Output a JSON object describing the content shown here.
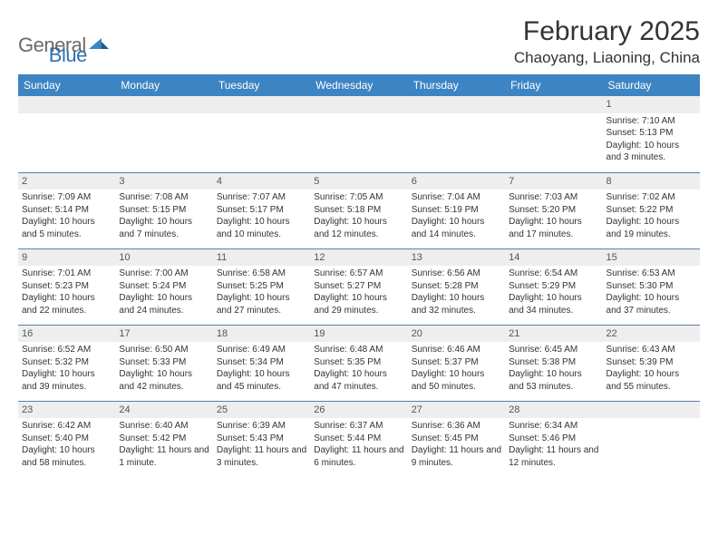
{
  "logo": {
    "text1": "General",
    "text2": "Blue"
  },
  "title": "February 2025",
  "location": "Chaoyang, Liaoning, China",
  "colors": {
    "header_bg": "#3d84c3",
    "header_text": "#ffffff",
    "row_border": "#5a7fa3",
    "daynum_bg": "#eeeeee",
    "logo_gray": "#6a6a6a",
    "logo_blue": "#2f6fb0",
    "text": "#333333"
  },
  "weekdays": [
    "Sunday",
    "Monday",
    "Tuesday",
    "Wednesday",
    "Thursday",
    "Friday",
    "Saturday"
  ],
  "weeks": [
    [
      {
        "num": "",
        "sunrise": "",
        "sunset": "",
        "daylight": ""
      },
      {
        "num": "",
        "sunrise": "",
        "sunset": "",
        "daylight": ""
      },
      {
        "num": "",
        "sunrise": "",
        "sunset": "",
        "daylight": ""
      },
      {
        "num": "",
        "sunrise": "",
        "sunset": "",
        "daylight": ""
      },
      {
        "num": "",
        "sunrise": "",
        "sunset": "",
        "daylight": ""
      },
      {
        "num": "",
        "sunrise": "",
        "sunset": "",
        "daylight": ""
      },
      {
        "num": "1",
        "sunrise": "Sunrise: 7:10 AM",
        "sunset": "Sunset: 5:13 PM",
        "daylight": "Daylight: 10 hours and 3 minutes."
      }
    ],
    [
      {
        "num": "2",
        "sunrise": "Sunrise: 7:09 AM",
        "sunset": "Sunset: 5:14 PM",
        "daylight": "Daylight: 10 hours and 5 minutes."
      },
      {
        "num": "3",
        "sunrise": "Sunrise: 7:08 AM",
        "sunset": "Sunset: 5:15 PM",
        "daylight": "Daylight: 10 hours and 7 minutes."
      },
      {
        "num": "4",
        "sunrise": "Sunrise: 7:07 AM",
        "sunset": "Sunset: 5:17 PM",
        "daylight": "Daylight: 10 hours and 10 minutes."
      },
      {
        "num": "5",
        "sunrise": "Sunrise: 7:05 AM",
        "sunset": "Sunset: 5:18 PM",
        "daylight": "Daylight: 10 hours and 12 minutes."
      },
      {
        "num": "6",
        "sunrise": "Sunrise: 7:04 AM",
        "sunset": "Sunset: 5:19 PM",
        "daylight": "Daylight: 10 hours and 14 minutes."
      },
      {
        "num": "7",
        "sunrise": "Sunrise: 7:03 AM",
        "sunset": "Sunset: 5:20 PM",
        "daylight": "Daylight: 10 hours and 17 minutes."
      },
      {
        "num": "8",
        "sunrise": "Sunrise: 7:02 AM",
        "sunset": "Sunset: 5:22 PM",
        "daylight": "Daylight: 10 hours and 19 minutes."
      }
    ],
    [
      {
        "num": "9",
        "sunrise": "Sunrise: 7:01 AM",
        "sunset": "Sunset: 5:23 PM",
        "daylight": "Daylight: 10 hours and 22 minutes."
      },
      {
        "num": "10",
        "sunrise": "Sunrise: 7:00 AM",
        "sunset": "Sunset: 5:24 PM",
        "daylight": "Daylight: 10 hours and 24 minutes."
      },
      {
        "num": "11",
        "sunrise": "Sunrise: 6:58 AM",
        "sunset": "Sunset: 5:25 PM",
        "daylight": "Daylight: 10 hours and 27 minutes."
      },
      {
        "num": "12",
        "sunrise": "Sunrise: 6:57 AM",
        "sunset": "Sunset: 5:27 PM",
        "daylight": "Daylight: 10 hours and 29 minutes."
      },
      {
        "num": "13",
        "sunrise": "Sunrise: 6:56 AM",
        "sunset": "Sunset: 5:28 PM",
        "daylight": "Daylight: 10 hours and 32 minutes."
      },
      {
        "num": "14",
        "sunrise": "Sunrise: 6:54 AM",
        "sunset": "Sunset: 5:29 PM",
        "daylight": "Daylight: 10 hours and 34 minutes."
      },
      {
        "num": "15",
        "sunrise": "Sunrise: 6:53 AM",
        "sunset": "Sunset: 5:30 PM",
        "daylight": "Daylight: 10 hours and 37 minutes."
      }
    ],
    [
      {
        "num": "16",
        "sunrise": "Sunrise: 6:52 AM",
        "sunset": "Sunset: 5:32 PM",
        "daylight": "Daylight: 10 hours and 39 minutes."
      },
      {
        "num": "17",
        "sunrise": "Sunrise: 6:50 AM",
        "sunset": "Sunset: 5:33 PM",
        "daylight": "Daylight: 10 hours and 42 minutes."
      },
      {
        "num": "18",
        "sunrise": "Sunrise: 6:49 AM",
        "sunset": "Sunset: 5:34 PM",
        "daylight": "Daylight: 10 hours and 45 minutes."
      },
      {
        "num": "19",
        "sunrise": "Sunrise: 6:48 AM",
        "sunset": "Sunset: 5:35 PM",
        "daylight": "Daylight: 10 hours and 47 minutes."
      },
      {
        "num": "20",
        "sunrise": "Sunrise: 6:46 AM",
        "sunset": "Sunset: 5:37 PM",
        "daylight": "Daylight: 10 hours and 50 minutes."
      },
      {
        "num": "21",
        "sunrise": "Sunrise: 6:45 AM",
        "sunset": "Sunset: 5:38 PM",
        "daylight": "Daylight: 10 hours and 53 minutes."
      },
      {
        "num": "22",
        "sunrise": "Sunrise: 6:43 AM",
        "sunset": "Sunset: 5:39 PM",
        "daylight": "Daylight: 10 hours and 55 minutes."
      }
    ],
    [
      {
        "num": "23",
        "sunrise": "Sunrise: 6:42 AM",
        "sunset": "Sunset: 5:40 PM",
        "daylight": "Daylight: 10 hours and 58 minutes."
      },
      {
        "num": "24",
        "sunrise": "Sunrise: 6:40 AM",
        "sunset": "Sunset: 5:42 PM",
        "daylight": "Daylight: 11 hours and 1 minute."
      },
      {
        "num": "25",
        "sunrise": "Sunrise: 6:39 AM",
        "sunset": "Sunset: 5:43 PM",
        "daylight": "Daylight: 11 hours and 3 minutes."
      },
      {
        "num": "26",
        "sunrise": "Sunrise: 6:37 AM",
        "sunset": "Sunset: 5:44 PM",
        "daylight": "Daylight: 11 hours and 6 minutes."
      },
      {
        "num": "27",
        "sunrise": "Sunrise: 6:36 AM",
        "sunset": "Sunset: 5:45 PM",
        "daylight": "Daylight: 11 hours and 9 minutes."
      },
      {
        "num": "28",
        "sunrise": "Sunrise: 6:34 AM",
        "sunset": "Sunset: 5:46 PM",
        "daylight": "Daylight: 11 hours and 12 minutes."
      },
      {
        "num": "",
        "sunrise": "",
        "sunset": "",
        "daylight": ""
      }
    ]
  ]
}
